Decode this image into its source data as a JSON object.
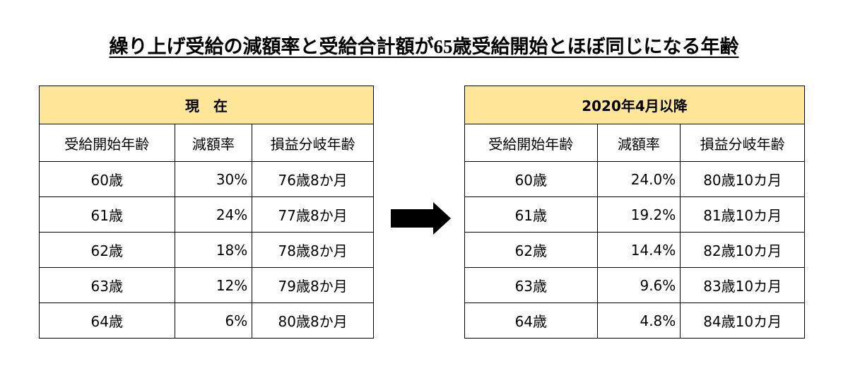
{
  "title": "繰り上げ受給の減額率と受給合計額が65歳受給開始とほぼ同じになる年齢",
  "tables": [
    {
      "caption": "現　在",
      "columns": [
        "受給開始年齢",
        "減額率",
        "損益分岐年齢"
      ],
      "rows": [
        [
          "60歳",
          "30%",
          "76歳8か月"
        ],
        [
          "61歳",
          "24%",
          "77歳8か月"
        ],
        [
          "62歳",
          "18%",
          "78歳8か月"
        ],
        [
          "63歳",
          "12%",
          "79歳8か月"
        ],
        [
          "64歳",
          "6%",
          "80歳8か月"
        ]
      ]
    },
    {
      "caption": "2020年4月以降",
      "columns": [
        "受給開始年齢",
        "減額率",
        "損益分岐年齢"
      ],
      "rows": [
        [
          "60歳",
          "24.0%",
          "80歳10カ月"
        ],
        [
          "61歳",
          "19.2%",
          "81歳10カ月"
        ],
        [
          "62歳",
          "14.4%",
          "82歳10カ月"
        ],
        [
          "63歳",
          "9.6%",
          "83歳10カ月"
        ],
        [
          "64歳",
          "4.8%",
          "84歳10カ月"
        ]
      ]
    }
  ]
}
